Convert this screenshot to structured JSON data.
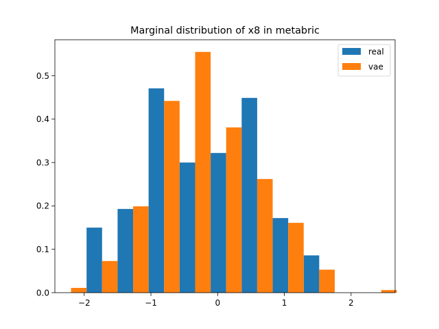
{
  "chart_data": {
    "type": "bar",
    "title": "Marginal distribution of x8 in metabric",
    "xlabel": "",
    "ylabel": "",
    "xlim": [
      -2.44,
      2.66
    ],
    "ylim": [
      0,
      0.583
    ],
    "xticks": [
      -2,
      -1,
      0,
      1,
      2
    ],
    "xtick_labels": [
      "−2",
      "−1",
      "0",
      "1",
      "2"
    ],
    "yticks": [
      0.0,
      0.1,
      0.2,
      0.3,
      0.4,
      0.5
    ],
    "ytick_labels": [
      "0.0",
      "0.1",
      "0.2",
      "0.3",
      "0.4",
      "0.5"
    ],
    "bin_edges": [
      -2.43,
      -1.965,
      -1.5,
      -1.035,
      -0.57,
      -0.105,
      0.36,
      0.825,
      1.29,
      1.755,
      2.22,
      2.685
    ],
    "series": [
      {
        "name": "real",
        "color": "#1f77b4",
        "values": [
          0.0,
          0.15,
          0.193,
          0.471,
          0.3,
          0.322,
          0.449,
          0.172,
          0.086,
          0.0,
          0.0
        ]
      },
      {
        "name": "vae",
        "color": "#ff7f0e",
        "values": [
          0.011,
          0.073,
          0.199,
          0.442,
          0.555,
          0.381,
          0.262,
          0.161,
          0.053,
          0.0,
          0.006
        ]
      }
    ],
    "grid": false,
    "legend_position": "upper right"
  }
}
